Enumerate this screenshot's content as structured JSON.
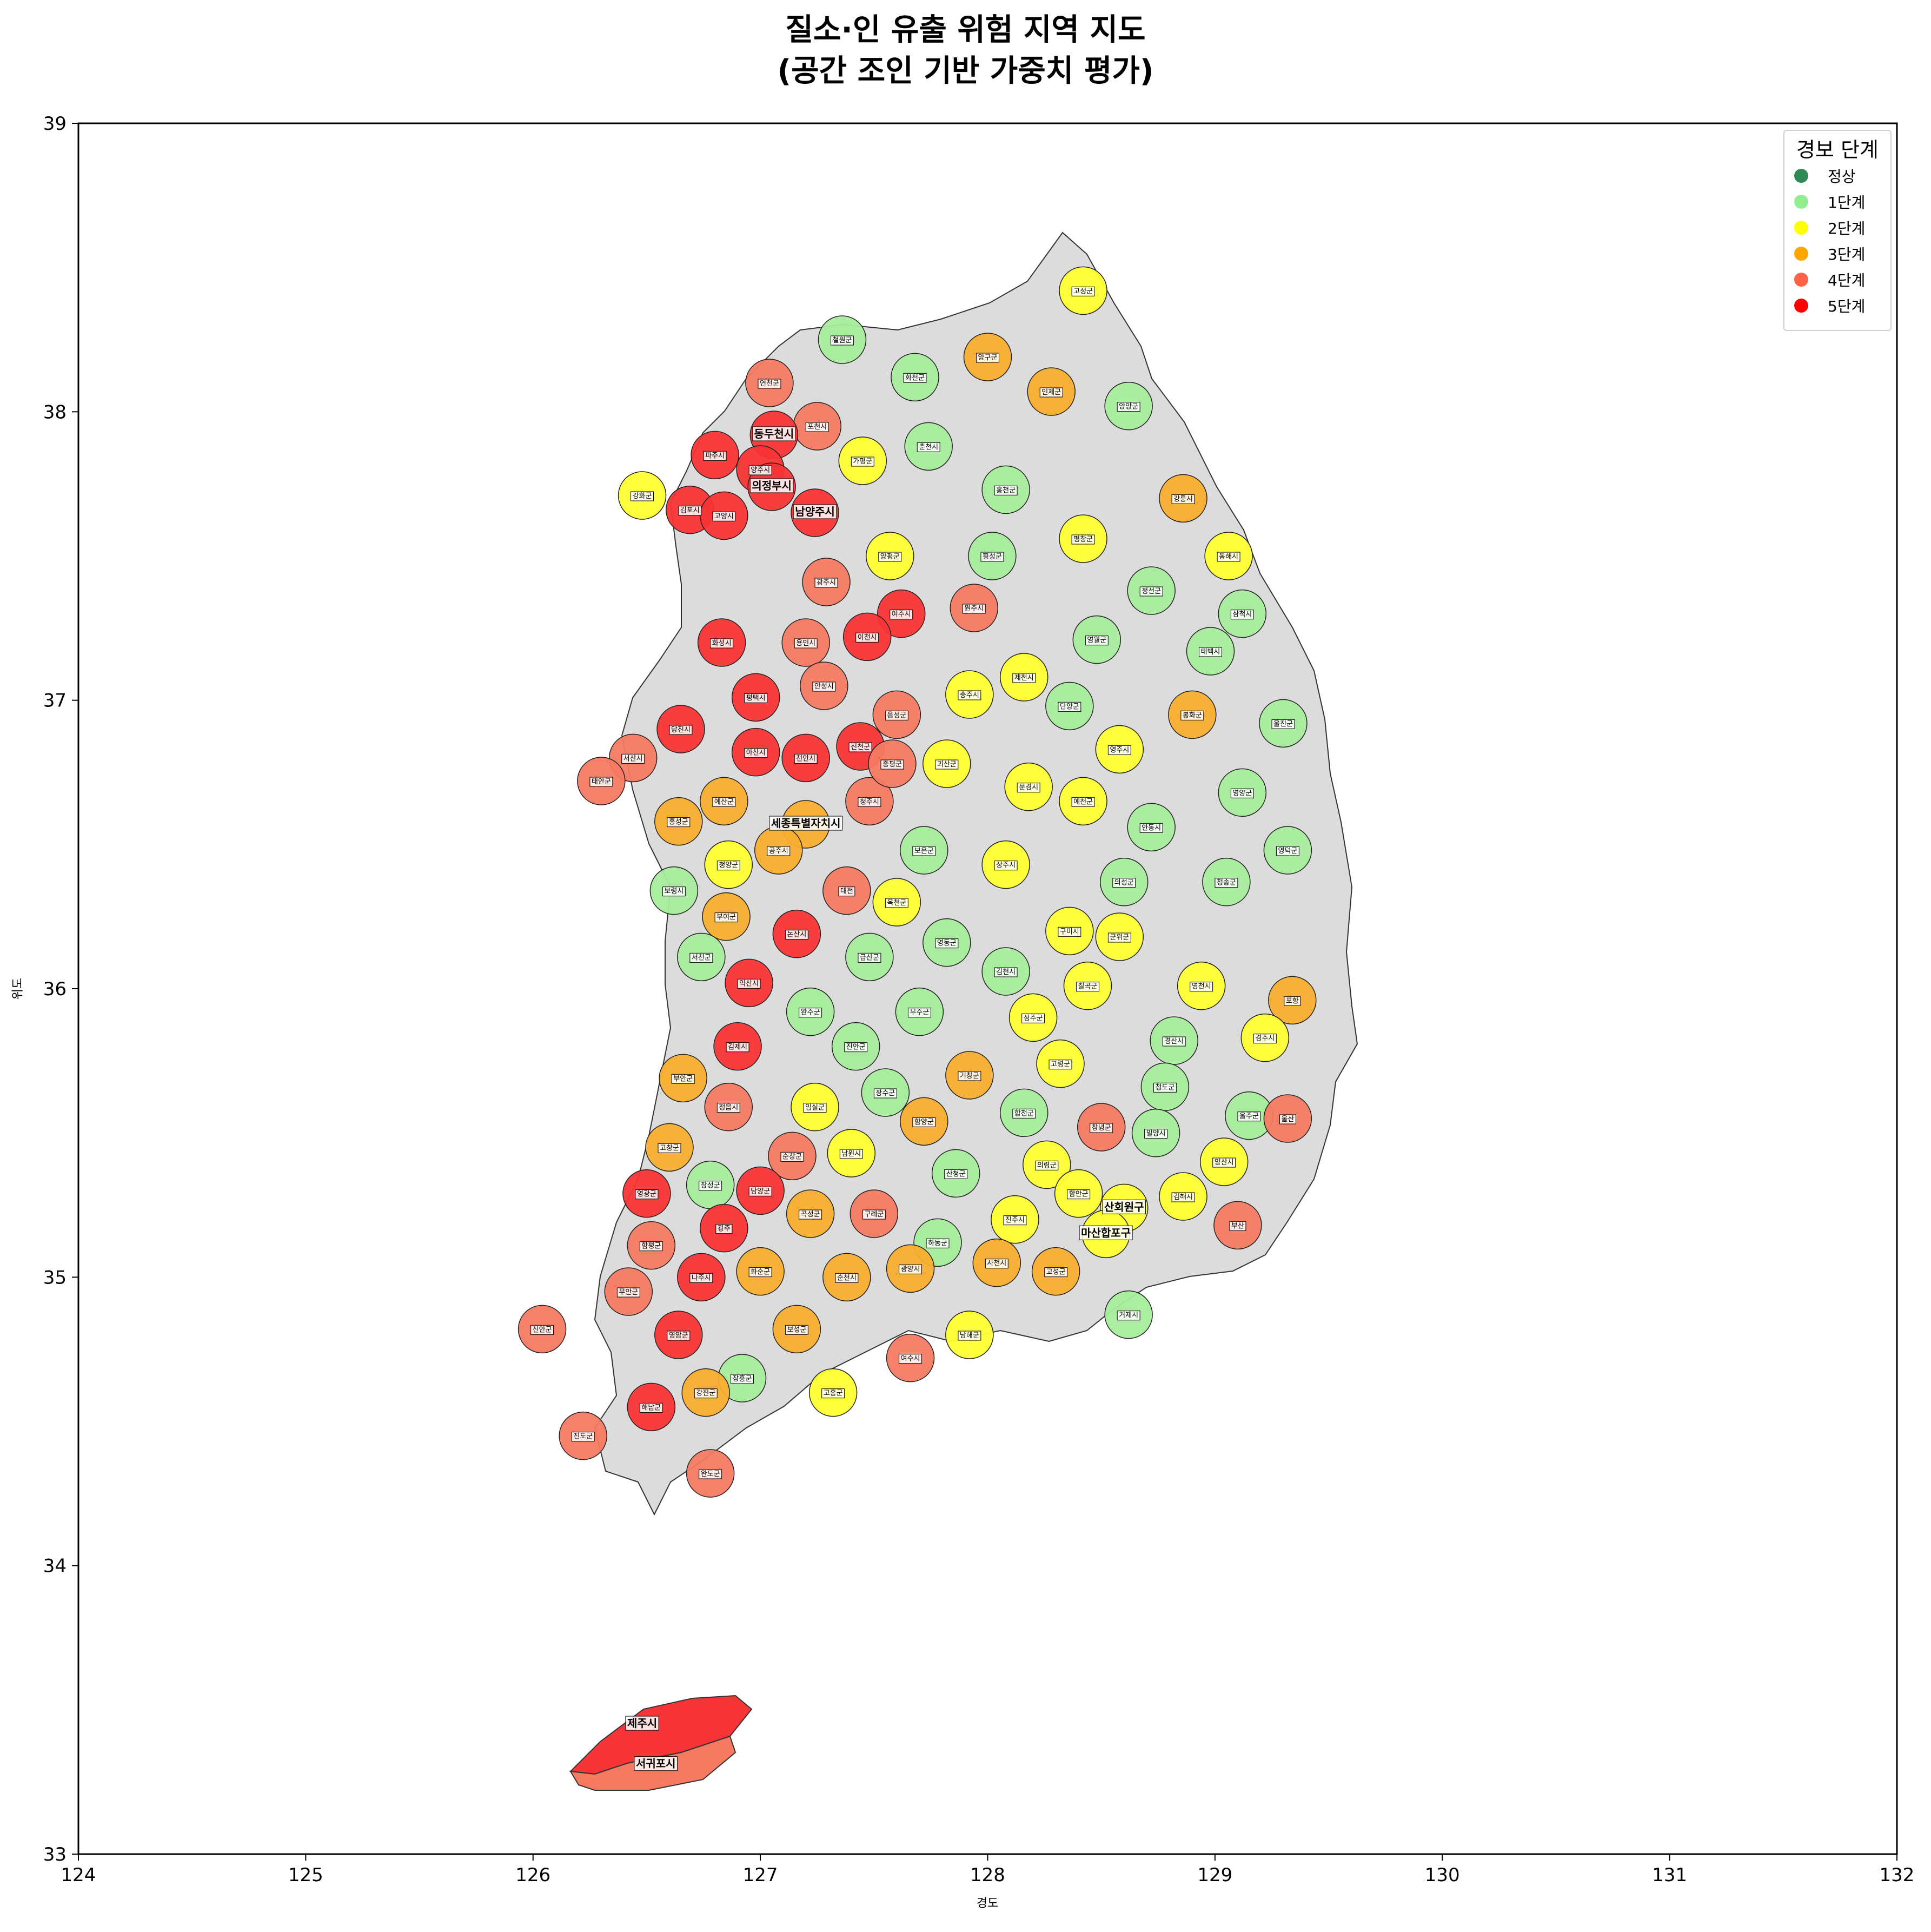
{
  "title": {
    "line1": "질소·인 유출 위험 지역 지도",
    "line2": "(공간 조인 기반 가중치 평가)"
  },
  "axes": {
    "xlabel": "경도",
    "ylabel": "위도",
    "xlim": [
      124,
      132
    ],
    "ylim": [
      33,
      39
    ],
    "xticks": [
      "124",
      "125",
      "126",
      "127",
      "128",
      "129",
      "130",
      "131",
      "132"
    ],
    "yticks": [
      "33",
      "34",
      "35",
      "36",
      "37",
      "38",
      "39"
    ]
  },
  "legend": {
    "title": "경보 단계",
    "items": [
      {
        "label": "정상",
        "color": "#2e8b57"
      },
      {
        "label": "1단계",
        "color": "#90ee90"
      },
      {
        "label": "2단계",
        "color": "#ffff00"
      },
      {
        "label": "3단계",
        "color": "#ffa500"
      },
      {
        "label": "4단계",
        "color": "#ff6347"
      },
      {
        "label": "5단계",
        "color": "#ff0000"
      }
    ]
  },
  "colors": {
    "level1": "#a6ec9c",
    "level2": "#ffff33",
    "level3": "#f9ae2e",
    "level4": "#f67a62",
    "level5": "#f93436",
    "nodata": "#dcdcdc"
  },
  "regions": [
    {
      "name": "고성군",
      "lon": 128.42,
      "lat": 38.42,
      "level": 2
    },
    {
      "name": "철원군",
      "lon": 127.36,
      "lat": 38.25,
      "level": 1
    },
    {
      "name": "화천군",
      "lon": 127.68,
      "lat": 38.12,
      "level": 1
    },
    {
      "name": "양구군",
      "lon": 128.0,
      "lat": 38.19,
      "level": 3
    },
    {
      "name": "인제군",
      "lon": 128.28,
      "lat": 38.07,
      "level": 3
    },
    {
      "name": "연천군",
      "lon": 127.04,
      "lat": 38.1,
      "level": 4
    },
    {
      "name": "포천시",
      "lon": 127.25,
      "lat": 37.95,
      "level": 4
    },
    {
      "name": "동두천시",
      "lon": 127.06,
      "lat": 37.92,
      "level": 5
    },
    {
      "name": "파주시",
      "lon": 126.8,
      "lat": 37.85,
      "level": 5
    },
    {
      "name": "양주시",
      "lon": 127.0,
      "lat": 37.8,
      "level": 5
    },
    {
      "name": "강화군",
      "lon": 126.48,
      "lat": 37.71,
      "level": 2
    },
    {
      "name": "김포시",
      "lon": 126.69,
      "lat": 37.66,
      "level": 5
    },
    {
      "name": "의정부시",
      "lon": 127.05,
      "lat": 37.74,
      "level": 5
    },
    {
      "name": "고양시",
      "lon": 126.84,
      "lat": 37.64,
      "level": 5
    },
    {
      "name": "남양주시",
      "lon": 127.24,
      "lat": 37.65,
      "level": 5
    },
    {
      "name": "가평군",
      "lon": 127.45,
      "lat": 37.83,
      "level": 2
    },
    {
      "name": "춘천시",
      "lon": 127.74,
      "lat": 37.88,
      "level": 1
    },
    {
      "name": "양양군",
      "lon": 128.62,
      "lat": 38.02,
      "level": 1
    },
    {
      "name": "홍천군",
      "lon": 128.08,
      "lat": 37.73,
      "level": 1
    },
    {
      "name": "강릉시",
      "lon": 128.86,
      "lat": 37.7,
      "level": 3
    },
    {
      "name": "양평군",
      "lon": 127.57,
      "lat": 37.5,
      "level": 2
    },
    {
      "name": "횡성군",
      "lon": 128.02,
      "lat": 37.5,
      "level": 1
    },
    {
      "name": "평창군",
      "lon": 128.42,
      "lat": 37.56,
      "level": 2
    },
    {
      "name": "동해시",
      "lon": 129.06,
      "lat": 37.5,
      "level": 2
    },
    {
      "name": "정선군",
      "lon": 128.72,
      "lat": 37.38,
      "level": 1
    },
    {
      "name": "삼척시",
      "lon": 129.12,
      "lat": 37.3,
      "level": 1
    },
    {
      "name": "광주시",
      "lon": 127.29,
      "lat": 37.41,
      "level": 4
    },
    {
      "name": "여주시",
      "lon": 127.62,
      "lat": 37.3,
      "level": 5
    },
    {
      "name": "원주시",
      "lon": 127.94,
      "lat": 37.32,
      "level": 4
    },
    {
      "name": "영월군",
      "lon": 128.48,
      "lat": 37.21,
      "level": 1
    },
    {
      "name": "태백시",
      "lon": 128.98,
      "lat": 37.17,
      "level": 1
    },
    {
      "name": "화성시",
      "lon": 126.83,
      "lat": 37.2,
      "level": 5
    },
    {
      "name": "용인시",
      "lon": 127.2,
      "lat": 37.2,
      "level": 4
    },
    {
      "name": "이천시",
      "lon": 127.47,
      "lat": 37.22,
      "level": 5
    },
    {
      "name": "제천시",
      "lon": 128.16,
      "lat": 37.08,
      "level": 2
    },
    {
      "name": "단양군",
      "lon": 128.36,
      "lat": 36.98,
      "level": 1
    },
    {
      "name": "충주시",
      "lon": 127.92,
      "lat": 37.02,
      "level": 2
    },
    {
      "name": "평택시",
      "lon": 126.98,
      "lat": 37.01,
      "level": 5
    },
    {
      "name": "안성시",
      "lon": 127.28,
      "lat": 37.05,
      "level": 4
    },
    {
      "name": "음성군",
      "lon": 127.6,
      "lat": 36.95,
      "level": 4
    },
    {
      "name": "봉화군",
      "lon": 128.9,
      "lat": 36.95,
      "level": 3
    },
    {
      "name": "울진군",
      "lon": 129.3,
      "lat": 36.92,
      "level": 1
    },
    {
      "name": "당진시",
      "lon": 126.65,
      "lat": 36.9,
      "level": 5
    },
    {
      "name": "서산시",
      "lon": 126.44,
      "lat": 36.8,
      "level": 4
    },
    {
      "name": "아산시",
      "lon": 126.98,
      "lat": 36.82,
      "level": 5
    },
    {
      "name": "천안시",
      "lon": 127.2,
      "lat": 36.8,
      "level": 5
    },
    {
      "name": "진천군",
      "lon": 127.44,
      "lat": 36.84,
      "level": 5
    },
    {
      "name": "괴산군",
      "lon": 127.82,
      "lat": 36.78,
      "level": 2
    },
    {
      "name": "영주시",
      "lon": 128.58,
      "lat": 36.83,
      "level": 2
    },
    {
      "name": "태안군",
      "lon": 126.3,
      "lat": 36.72,
      "level": 4
    },
    {
      "name": "예산군",
      "lon": 126.84,
      "lat": 36.65,
      "level": 3
    },
    {
      "name": "청주시",
      "lon": 127.48,
      "lat": 36.65,
      "level": 4
    },
    {
      "name": "증평군",
      "lon": 127.58,
      "lat": 36.78,
      "level": 4
    },
    {
      "name": "문경시",
      "lon": 128.18,
      "lat": 36.7,
      "level": 2
    },
    {
      "name": "예천군",
      "lon": 128.42,
      "lat": 36.65,
      "level": 2
    },
    {
      "name": "영양군",
      "lon": 129.12,
      "lat": 36.68,
      "level": 1
    },
    {
      "name": "영덕군",
      "lon": 129.32,
      "lat": 36.48,
      "level": 1
    },
    {
      "name": "홍성군",
      "lon": 126.64,
      "lat": 36.58,
      "level": 3
    },
    {
      "name": "세종특별자치시",
      "lon": 127.2,
      "lat": 36.57,
      "level": 3
    },
    {
      "name": "공주시",
      "lon": 127.08,
      "lat": 36.48,
      "level": 3
    },
    {
      "name": "청양군",
      "lon": 126.86,
      "lat": 36.43,
      "level": 2
    },
    {
      "name": "보은군",
      "lon": 127.72,
      "lat": 36.48,
      "level": 1
    },
    {
      "name": "상주시",
      "lon": 128.08,
      "lat": 36.43,
      "level": 2
    },
    {
      "name": "안동시",
      "lon": 128.72,
      "lat": 36.56,
      "level": 1
    },
    {
      "name": "보령시",
      "lon": 126.62,
      "lat": 36.34,
      "level": 1
    },
    {
      "name": "의성군",
      "lon": 128.6,
      "lat": 36.37,
      "level": 1
    },
    {
      "name": "청송군",
      "lon": 129.05,
      "lat": 36.37,
      "level": 1
    },
    {
      "name": "부여군",
      "lon": 126.85,
      "lat": 36.25,
      "level": 3
    },
    {
      "name": "논산시",
      "lon": 127.16,
      "lat": 36.19,
      "level": 5
    },
    {
      "name": "대전",
      "lon": 127.38,
      "lat": 36.34,
      "level": 4
    },
    {
      "name": "옥천군",
      "lon": 127.6,
      "lat": 36.3,
      "level": 2
    },
    {
      "name": "구미시",
      "lon": 128.36,
      "lat": 36.2,
      "level": 2
    },
    {
      "name": "군위군",
      "lon": 128.58,
      "lat": 36.18,
      "level": 2
    },
    {
      "name": "서천군",
      "lon": 126.74,
      "lat": 36.11,
      "level": 1
    },
    {
      "name": "금산군",
      "lon": 127.48,
      "lat": 36.11,
      "level": 1
    },
    {
      "name": "영동군",
      "lon": 127.82,
      "lat": 36.16,
      "level": 1
    },
    {
      "name": "김천시",
      "lon": 128.08,
      "lat": 36.06,
      "level": 1
    },
    {
      "name": "칠곡군",
      "lon": 128.44,
      "lat": 36.01,
      "level": 2
    },
    {
      "name": "영천시",
      "lon": 128.94,
      "lat": 36.01,
      "level": 2
    },
    {
      "name": "포항",
      "lon": 129.34,
      "lat": 35.96,
      "level": 3
    },
    {
      "name": "익산시",
      "lon": 126.95,
      "lat": 36.02,
      "level": 5
    },
    {
      "name": "완주군",
      "lon": 127.22,
      "lat": 35.92,
      "level": 1
    },
    {
      "name": "무주군",
      "lon": 127.7,
      "lat": 35.92,
      "level": 1
    },
    {
      "name": "성주군",
      "lon": 128.2,
      "lat": 35.9,
      "level": 2
    },
    {
      "name": "경산시",
      "lon": 128.82,
      "lat": 35.82,
      "level": 1
    },
    {
      "name": "경주시",
      "lon": 129.22,
      "lat": 35.83,
      "level": 2
    },
    {
      "name": "김제시",
      "lon": 126.9,
      "lat": 35.8,
      "level": 5
    },
    {
      "name": "진안군",
      "lon": 127.42,
      "lat": 35.8,
      "level": 1
    },
    {
      "name": "고령군",
      "lon": 128.32,
      "lat": 35.74,
      "level": 2
    },
    {
      "name": "청도군",
      "lon": 128.78,
      "lat": 35.66,
      "level": 1
    },
    {
      "name": "부안군",
      "lon": 126.66,
      "lat": 35.69,
      "level": 3
    },
    {
      "name": "정읍시",
      "lon": 126.86,
      "lat": 35.59,
      "level": 4
    },
    {
      "name": "임실군",
      "lon": 127.24,
      "lat": 35.59,
      "level": 2
    },
    {
      "name": "장수군",
      "lon": 127.55,
      "lat": 35.64,
      "level": 1
    },
    {
      "name": "거창군",
      "lon": 127.92,
      "lat": 35.7,
      "level": 3
    },
    {
      "name": "합천군",
      "lon": 128.16,
      "lat": 35.57,
      "level": 1
    },
    {
      "name": "창녕군",
      "lon": 128.5,
      "lat": 35.52,
      "level": 4
    },
    {
      "name": "밀양시",
      "lon": 128.74,
      "lat": 35.5,
      "level": 1
    },
    {
      "name": "울주군",
      "lon": 129.15,
      "lat": 35.56,
      "level": 1
    },
    {
      "name": "울산",
      "lon": 129.32,
      "lat": 35.55,
      "level": 4
    },
    {
      "name": "함양군",
      "lon": 127.72,
      "lat": 35.54,
      "level": 3
    },
    {
      "name": "고창군",
      "lon": 126.6,
      "lat": 35.45,
      "level": 3
    },
    {
      "name": "순창군",
      "lon": 127.14,
      "lat": 35.42,
      "level": 4
    },
    {
      "name": "남원시",
      "lon": 127.4,
      "lat": 35.43,
      "level": 2
    },
    {
      "name": "산청군",
      "lon": 127.86,
      "lat": 35.36,
      "level": 1
    },
    {
      "name": "의령군",
      "lon": 128.26,
      "lat": 35.39,
      "level": 2
    },
    {
      "name": "양산시",
      "lon": 129.04,
      "lat": 35.4,
      "level": 2
    },
    {
      "name": "영광군",
      "lon": 126.5,
      "lat": 35.29,
      "level": 5
    },
    {
      "name": "장성군",
      "lon": 126.78,
      "lat": 35.32,
      "level": 1
    },
    {
      "name": "담양군",
      "lon": 127.0,
      "lat": 35.3,
      "level": 5
    },
    {
      "name": "곡성군",
      "lon": 127.22,
      "lat": 35.22,
      "level": 3
    },
    {
      "name": "구례군",
      "lon": 127.5,
      "lat": 35.22,
      "level": 4
    },
    {
      "name": "함안군",
      "lon": 128.4,
      "lat": 35.29,
      "level": 2
    },
    {
      "name": "김해시",
      "lon": 128.86,
      "lat": 35.28,
      "level": 2
    },
    {
      "name": "산회원구",
      "lon": 128.6,
      "lat": 35.24,
      "level": 2
    },
    {
      "name": "광주",
      "lon": 126.84,
      "lat": 35.17,
      "level": 5
    },
    {
      "name": "진주시",
      "lon": 128.12,
      "lat": 35.2,
      "level": 2
    },
    {
      "name": "하동군",
      "lon": 127.78,
      "lat": 35.12,
      "level": 1
    },
    {
      "name": "마산합포구",
      "lon": 128.52,
      "lat": 35.15,
      "level": 2
    },
    {
      "name": "부산",
      "lon": 129.1,
      "lat": 35.18,
      "level": 4
    },
    {
      "name": "함평군",
      "lon": 126.52,
      "lat": 35.11,
      "level": 4
    },
    {
      "name": "화순군",
      "lon": 127.0,
      "lat": 35.02,
      "level": 3
    },
    {
      "name": "순천시",
      "lon": 127.38,
      "lat": 35.0,
      "level": 3
    },
    {
      "name": "광양시",
      "lon": 127.66,
      "lat": 35.03,
      "level": 3
    },
    {
      "name": "사천시",
      "lon": 128.04,
      "lat": 35.05,
      "level": 3
    },
    {
      "name": "고성군",
      "lon": 128.3,
      "lat": 35.02,
      "level": 3
    },
    {
      "name": "나주시",
      "lon": 126.74,
      "lat": 35.0,
      "level": 5
    },
    {
      "name": "무안군",
      "lon": 126.42,
      "lat": 34.95,
      "level": 4
    },
    {
      "name": "신안군",
      "lon": 126.04,
      "lat": 34.82,
      "level": 4
    },
    {
      "name": "거제시",
      "lon": 128.62,
      "lat": 34.87,
      "level": 1
    },
    {
      "name": "남해군",
      "lon": 127.92,
      "lat": 34.8,
      "level": 2
    },
    {
      "name": "영암군",
      "lon": 126.64,
      "lat": 34.8,
      "level": 5
    },
    {
      "name": "보성군",
      "lon": 127.16,
      "lat": 34.82,
      "level": 3
    },
    {
      "name": "여수시",
      "lon": 127.66,
      "lat": 34.72,
      "level": 4
    },
    {
      "name": "장흥군",
      "lon": 126.92,
      "lat": 34.65,
      "level": 1
    },
    {
      "name": "강진군",
      "lon": 126.76,
      "lat": 34.6,
      "level": 3
    },
    {
      "name": "고흥군",
      "lon": 127.32,
      "lat": 34.6,
      "level": 2
    },
    {
      "name": "해남군",
      "lon": 126.52,
      "lat": 34.55,
      "level": 5
    },
    {
      "name": "진도군",
      "lon": 126.22,
      "lat": 34.45,
      "level": 4
    },
    {
      "name": "완도군",
      "lon": 126.78,
      "lat": 34.32,
      "level": 4
    },
    {
      "name": "제주시",
      "lon": 126.48,
      "lat": 33.45,
      "level": 5
    },
    {
      "name": "서귀포시",
      "lon": 126.54,
      "lat": 33.31,
      "level": 4
    }
  ]
}
